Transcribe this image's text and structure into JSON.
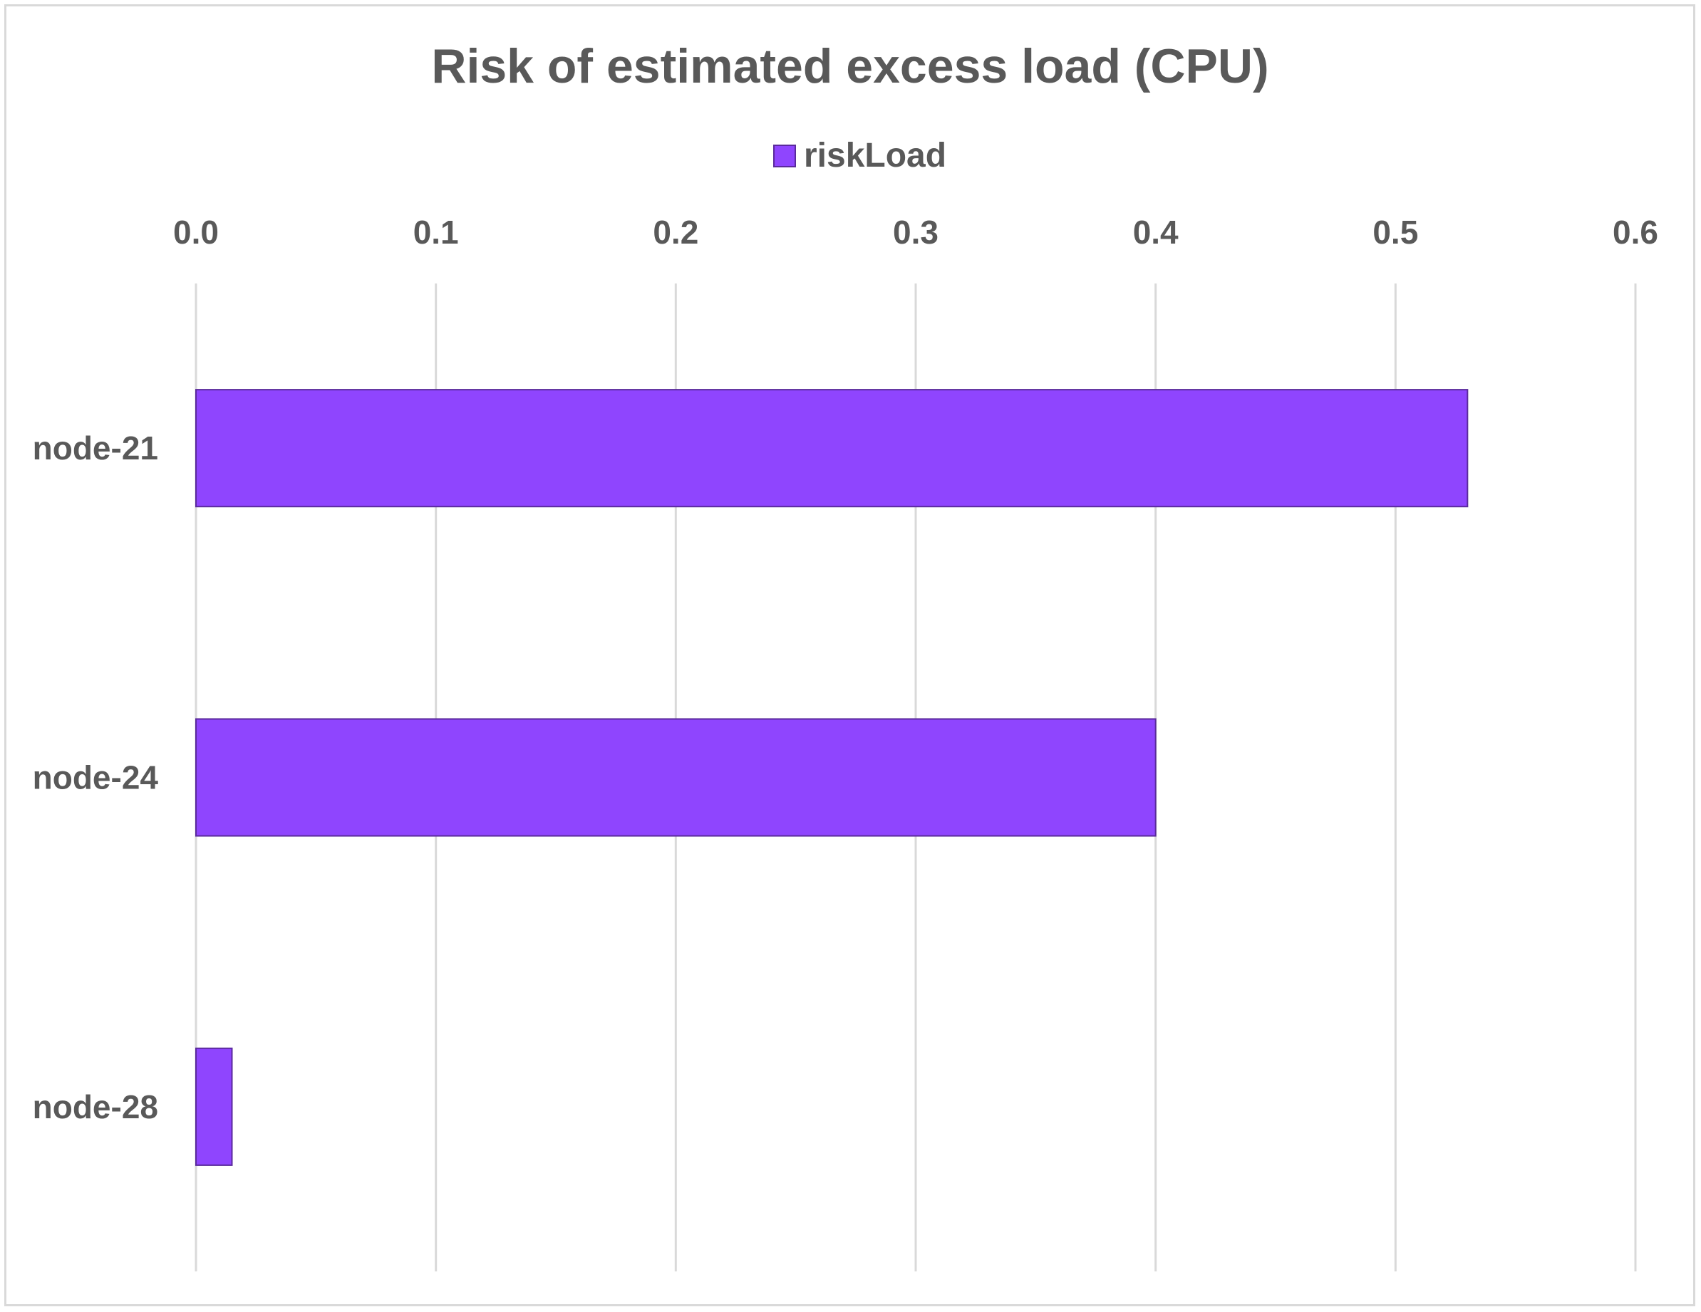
{
  "chart_data": {
    "type": "bar",
    "orientation": "horizontal",
    "title": "Risk of estimated excess load (CPU)",
    "categories": [
      "node-21",
      "node-24",
      "node-28"
    ],
    "series": [
      {
        "name": "riskLoad",
        "values": [
          0.53,
          0.4,
          0.015
        ],
        "color": "#8f45fe",
        "edge_color": "#5a2a9c"
      }
    ],
    "xlim": [
      0,
      0.6
    ],
    "x_ticks": [
      "0.0",
      "0.1",
      "0.2",
      "0.3",
      "0.4",
      "0.5",
      "0.6"
    ],
    "x_axis_position": "top",
    "grid": true,
    "legend_position": "top"
  }
}
